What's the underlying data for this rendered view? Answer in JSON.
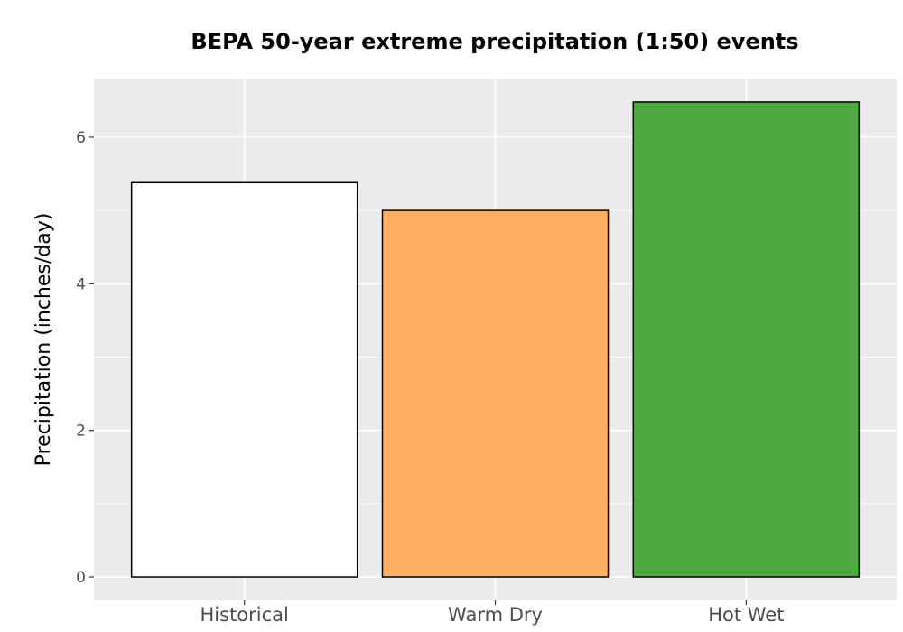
{
  "chart_data": {
    "type": "bar",
    "title": "BEPA 50-year extreme precipitation (1:50) events",
    "ylabel": "Precipitation (inches/day)",
    "xlabel": "",
    "categories": [
      "Historical",
      "Warm Dry",
      "Hot Wet"
    ],
    "values": [
      5.38,
      5.0,
      6.48
    ],
    "colors": [
      "#ffffff",
      "#fdae61",
      "#4daa3f"
    ],
    "yticks": [
      0,
      2,
      4,
      6
    ],
    "ylim": [
      -0.32,
      6.8
    ],
    "grid": true,
    "panel_background": "#ebebeb",
    "bar_outline": "#000000"
  }
}
